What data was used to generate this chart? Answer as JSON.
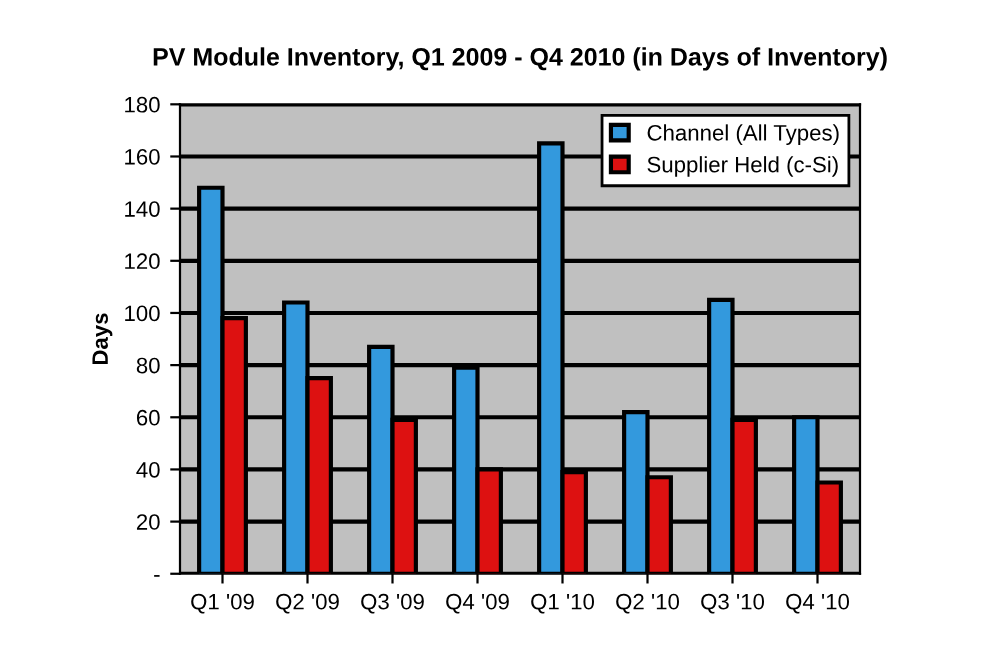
{
  "chart_data": {
    "type": "bar",
    "title": "PV Module Inventory, Q1 2009 - Q4 2010 (in Days of Inventory)",
    "ylabel": "Days",
    "categories": [
      "Q1 '09",
      "Q2 '09",
      "Q3 '09",
      "Q4 '09",
      "Q1 '10",
      "Q2 '10",
      "Q3 '10",
      "Q4 '10"
    ],
    "series": [
      {
        "name": "Channel (All Types)",
        "color": "#3399dd",
        "values": [
          148,
          104,
          87,
          79,
          165,
          62,
          105,
          60
        ]
      },
      {
        "name": "Supplier Held (c-Si)",
        "color": "#dd1111",
        "values": [
          98,
          75,
          59,
          40,
          39,
          37,
          59,
          35
        ]
      }
    ],
    "ylim": [
      0,
      180
    ],
    "yticks": [
      {
        "value": 0,
        "label": "-"
      },
      20,
      40,
      60,
      80,
      100,
      120,
      140,
      160,
      180
    ],
    "grid": "y",
    "legend": "top right"
  }
}
